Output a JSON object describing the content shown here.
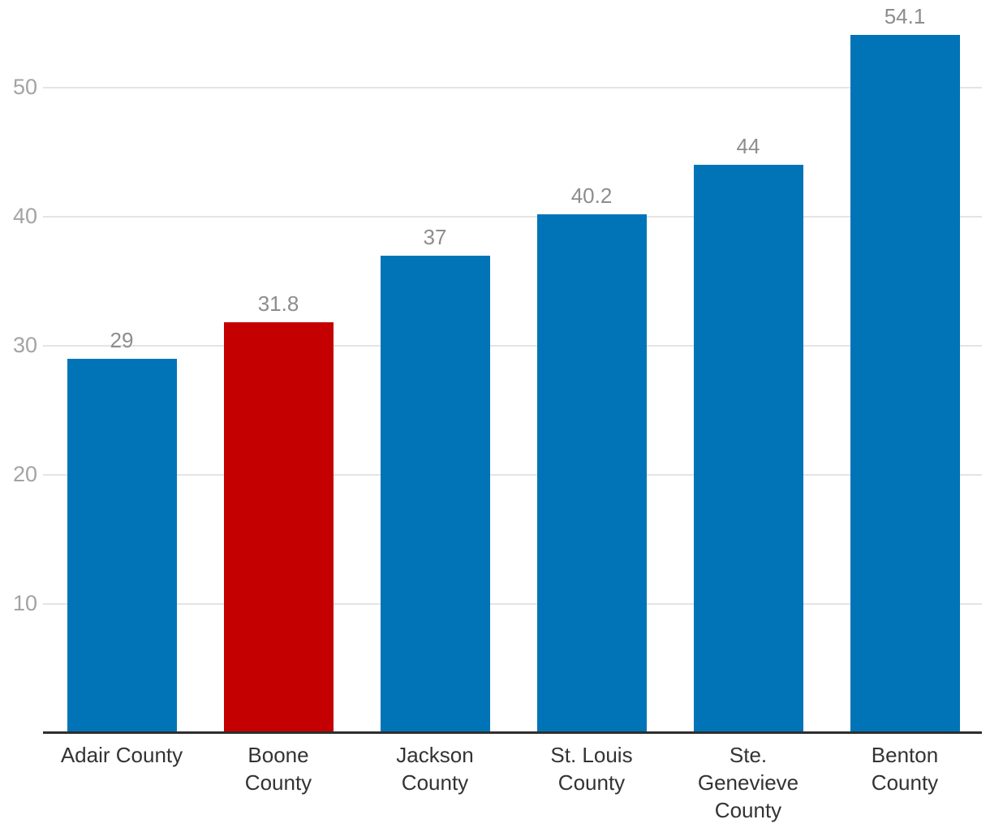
{
  "chart_data": {
    "type": "bar",
    "title": "",
    "xlabel": "",
    "ylabel": "",
    "categories": [
      "Adair County",
      "Boone County",
      "Jackson County",
      "St. Louis County",
      "Ste. Genevieve County",
      "Benton County"
    ],
    "category_label_lines": [
      "Adair County",
      "Boone\nCounty",
      "Jackson\nCounty",
      "St. Louis\nCounty",
      "Ste.\nGenevieve\nCounty",
      "Benton\nCounty"
    ],
    "values": [
      29,
      31.8,
      37,
      40.2,
      44,
      54.1
    ],
    "value_labels": [
      "29",
      "31.8",
      "37",
      "40.2",
      "44",
      "54.1"
    ],
    "highlight_index": 1,
    "yticks": [
      10,
      20,
      30,
      40,
      50
    ],
    "ylim": [
      0,
      57
    ],
    "grid": true,
    "legend_position": "none",
    "colors": {
      "bar": "#0074b6",
      "highlight_bar": "#c40000",
      "gridline": "#e4e4e4",
      "axis_line": "#2e2e2e",
      "tick_label": "#a3a3a3",
      "value_label": "#8d8d8d",
      "category_label": "#333333",
      "background": "#ffffff"
    }
  }
}
